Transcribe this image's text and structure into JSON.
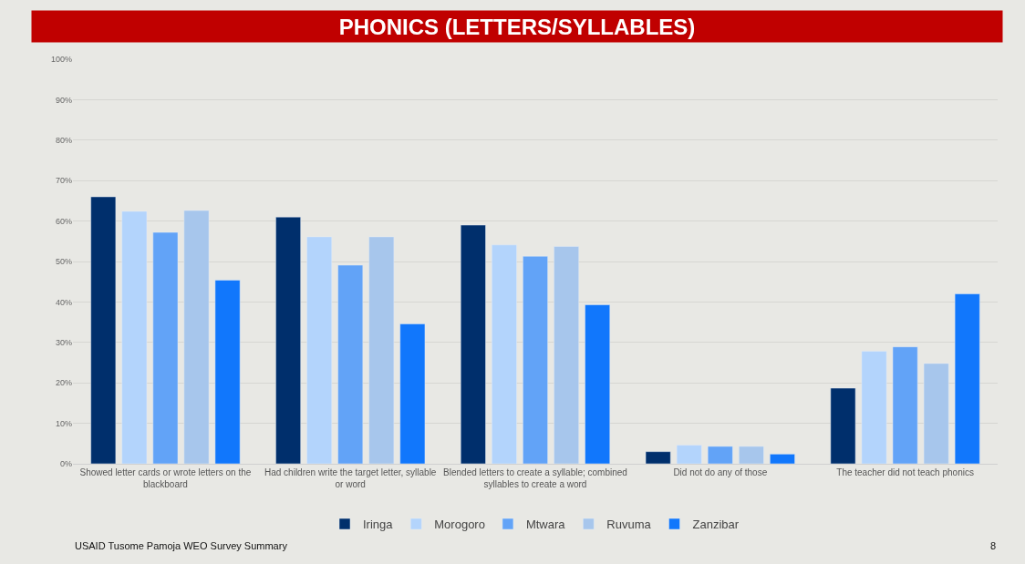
{
  "chart_data": {
    "type": "bar",
    "title": "PHONICS (LETTERS/SYLLABLES)",
    "categories": [
      "Showed letter cards or wrote letters on the blackboard",
      "Had children write the target letter, syllable or word",
      "Blended letters to create a syllable; combined syllables to create a word",
      "Did not do any of those",
      "The teacher did not teach phonics"
    ],
    "series": [
      {
        "name": "Iringa",
        "color": "#002f6c",
        "values": [
          66,
          61,
          59,
          3,
          18.7
        ]
      },
      {
        "name": "Morogoro",
        "color": "#b3d4fc",
        "values": [
          62.4,
          56.1,
          54.1,
          4.6,
          27.8
        ]
      },
      {
        "name": "Mtwara",
        "color": "#62a3f7",
        "values": [
          57.2,
          49.1,
          51.3,
          4.3,
          28.9
        ]
      },
      {
        "name": "Ruvuma",
        "color": "#a7c6ec",
        "values": [
          62.6,
          56.1,
          53.7,
          4.3,
          24.8
        ]
      },
      {
        "name": "Zanzibar",
        "color": "#1177fc",
        "values": [
          45.4,
          34.6,
          39.3,
          2.4,
          42
        ]
      }
    ],
    "ylim": [
      0,
      100
    ],
    "yticks": [
      {
        "value": 0,
        "label": "0%"
      },
      {
        "value": 10,
        "label": "10%"
      },
      {
        "value": 20,
        "label": "20%"
      },
      {
        "value": 30,
        "label": "30%"
      },
      {
        "value": 40,
        "label": "40%"
      },
      {
        "value": 50,
        "label": "50%"
      },
      {
        "value": 60,
        "label": "60%"
      },
      {
        "value": 70,
        "label": "70%"
      },
      {
        "value": 80,
        "label": "80%"
      },
      {
        "value": 90,
        "label": "90%"
      },
      {
        "value": 100,
        "label": "100%"
      }
    ],
    "grid": "y",
    "legend": "bottom",
    "annotations": [
      "USAID Tusome Pamoja WEO Survey Summary",
      "8"
    ]
  }
}
